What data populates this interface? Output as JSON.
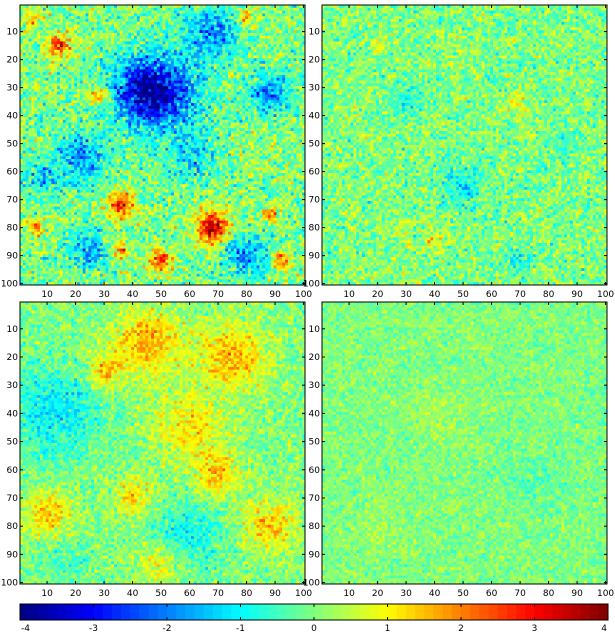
{
  "chart_data": [
    {
      "type": "heatmap",
      "panel": "top-left",
      "title": "",
      "xlabel": "",
      "ylabel": "",
      "xlim": [
        1,
        100
      ],
      "ylim": [
        1,
        100
      ],
      "y_direction": "reversed",
      "xticks": [
        10,
        20,
        30,
        40,
        50,
        60,
        70,
        80,
        90,
        100
      ],
      "yticks": [
        10,
        20,
        30,
        40,
        50,
        60,
        70,
        80,
        90,
        100
      ],
      "grid_size": [
        100,
        100
      ],
      "value_range": [
        -4,
        4
      ],
      "pattern": {
        "noise": 0.9,
        "blobs": [
          {
            "x": 50,
            "y": 32,
            "r": 14,
            "amp": -2.8
          },
          {
            "x": 42,
            "y": 30,
            "r": 10,
            "amp": -1.6
          },
          {
            "x": 88,
            "y": 32,
            "r": 7,
            "amp": -2.0
          },
          {
            "x": 22,
            "y": 55,
            "r": 9,
            "amp": -1.8
          },
          {
            "x": 68,
            "y": 10,
            "r": 9,
            "amp": -1.8
          },
          {
            "x": 62,
            "y": 55,
            "r": 8,
            "amp": -1.2
          },
          {
            "x": 25,
            "y": 88,
            "r": 7,
            "amp": -1.6
          },
          {
            "x": 80,
            "y": 90,
            "r": 8,
            "amp": -1.8
          },
          {
            "x": 8,
            "y": 62,
            "r": 6,
            "amp": -1.2
          },
          {
            "x": 14,
            "y": 15,
            "r": 4,
            "amp": 2.8
          },
          {
            "x": 28,
            "y": 33,
            "r": 3,
            "amp": 2.2
          },
          {
            "x": 36,
            "y": 72,
            "r": 5,
            "amp": 2.6
          },
          {
            "x": 68,
            "y": 80,
            "r": 6,
            "amp": 3.4
          },
          {
            "x": 50,
            "y": 92,
            "r": 4,
            "amp": 2.4
          },
          {
            "x": 36,
            "y": 88,
            "r": 3,
            "amp": 2.0
          },
          {
            "x": 88,
            "y": 75,
            "r": 3,
            "amp": 2.0
          },
          {
            "x": 92,
            "y": 92,
            "r": 3,
            "amp": 2.2
          },
          {
            "x": 6,
            "y": 80,
            "r": 3,
            "amp": 1.8
          },
          {
            "x": 80,
            "y": 5,
            "r": 3,
            "amp": 1.8
          },
          {
            "x": 5,
            "y": 5,
            "r": 3,
            "amp": 1.8
          }
        ]
      }
    },
    {
      "type": "heatmap",
      "panel": "top-right",
      "title": "",
      "xlabel": "",
      "ylabel": "",
      "xlim": [
        1,
        100
      ],
      "ylim": [
        1,
        100
      ],
      "y_direction": "reversed",
      "xticks": [
        10,
        20,
        30,
        40,
        50,
        60,
        70,
        80,
        90,
        100
      ],
      "yticks": [
        10,
        20,
        30,
        40,
        50,
        60,
        70,
        80,
        90,
        100
      ],
      "grid_size": [
        100,
        100
      ],
      "value_range": [
        -4,
        4
      ],
      "pattern": {
        "noise": 0.75,
        "blobs": [
          {
            "x": 50,
            "y": 65,
            "r": 8,
            "amp": -0.9
          },
          {
            "x": 30,
            "y": 35,
            "r": 6,
            "amp": -0.7
          },
          {
            "x": 85,
            "y": 50,
            "r": 6,
            "amp": -0.6
          },
          {
            "x": 70,
            "y": 92,
            "r": 5,
            "amp": -0.7
          },
          {
            "x": 40,
            "y": 85,
            "r": 4,
            "amp": 0.9
          },
          {
            "x": 70,
            "y": 35,
            "r": 4,
            "amp": 0.9
          },
          {
            "x": 28,
            "y": 80,
            "r": 3,
            "amp": 0.9
          },
          {
            "x": 20,
            "y": 15,
            "r": 3,
            "amp": 0.8
          }
        ]
      }
    },
    {
      "type": "heatmap",
      "panel": "bottom-left",
      "title": "",
      "xlabel": "",
      "ylabel": "",
      "xlim": [
        1,
        100
      ],
      "ylim": [
        1,
        100
      ],
      "y_direction": "reversed",
      "xticks": [
        10,
        20,
        30,
        40,
        50,
        60,
        70,
        80,
        90,
        100
      ],
      "yticks": [
        10,
        20,
        30,
        40,
        50,
        60,
        70,
        80,
        90,
        100
      ],
      "grid_size": [
        100,
        100
      ],
      "value_range": [
        -4,
        4
      ],
      "pattern": {
        "noise": 0.6,
        "blobs": [
          {
            "x": 45,
            "y": 15,
            "r": 12,
            "amp": 1.6
          },
          {
            "x": 75,
            "y": 20,
            "r": 12,
            "amp": 1.5
          },
          {
            "x": 30,
            "y": 25,
            "r": 6,
            "amp": 1.4
          },
          {
            "x": 60,
            "y": 45,
            "r": 12,
            "amp": 1.2
          },
          {
            "x": 70,
            "y": 62,
            "r": 8,
            "amp": 1.4
          },
          {
            "x": 10,
            "y": 75,
            "r": 8,
            "amp": 1.4
          },
          {
            "x": 40,
            "y": 70,
            "r": 7,
            "amp": 1.2
          },
          {
            "x": 88,
            "y": 80,
            "r": 9,
            "amp": 1.5
          },
          {
            "x": 50,
            "y": 93,
            "r": 7,
            "amp": 1.0
          },
          {
            "x": 12,
            "y": 40,
            "r": 16,
            "amp": -1.1
          },
          {
            "x": 60,
            "y": 83,
            "r": 12,
            "amp": -0.9
          },
          {
            "x": 18,
            "y": 92,
            "r": 6,
            "amp": -0.6
          }
        ]
      }
    },
    {
      "type": "heatmap",
      "panel": "bottom-right",
      "title": "",
      "xlabel": "",
      "ylabel": "",
      "xlim": [
        1,
        100
      ],
      "ylim": [
        1,
        100
      ],
      "y_direction": "reversed",
      "xticks": [
        10,
        20,
        30,
        40,
        50,
        60,
        70,
        80,
        90,
        100
      ],
      "yticks": [
        10,
        20,
        30,
        40,
        50,
        60,
        70,
        80,
        90,
        100
      ],
      "grid_size": [
        100,
        100
      ],
      "value_range": [
        -4,
        4
      ],
      "pattern": {
        "noise": 0.45,
        "blobs": [
          {
            "x": 40,
            "y": 40,
            "r": 10,
            "amp": 0.3
          },
          {
            "x": 75,
            "y": 65,
            "r": 10,
            "amp": -0.3
          },
          {
            "x": 20,
            "y": 80,
            "r": 8,
            "amp": 0.3
          }
        ]
      }
    }
  ],
  "colorbar": {
    "min": -4,
    "max": 4,
    "levels": 64,
    "colormap": "jet",
    "ticks": [
      -4,
      -3,
      -2,
      -1,
      0,
      1,
      2,
      3,
      4
    ]
  }
}
